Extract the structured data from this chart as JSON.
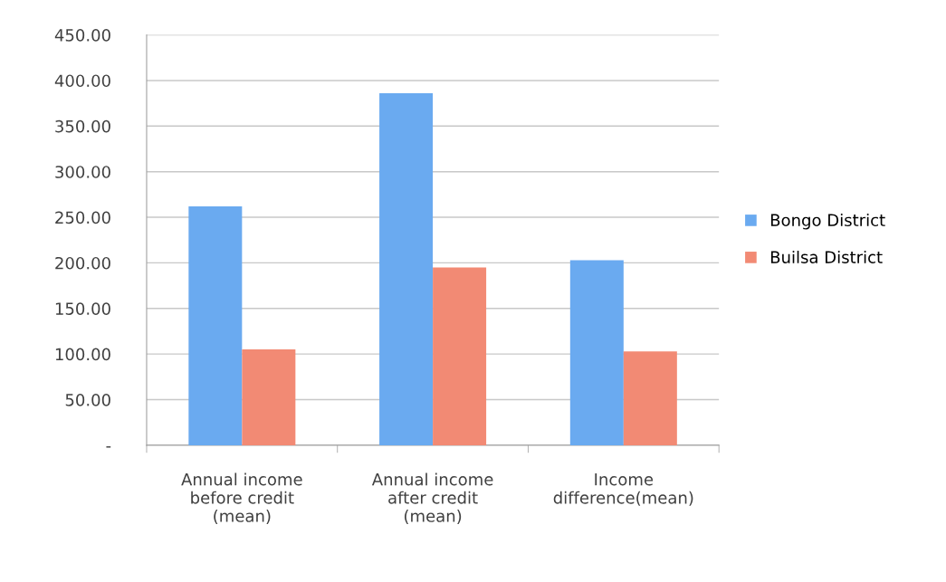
{
  "chart_data": {
    "type": "bar",
    "categories": [
      "Annual income\nbefore credit\n(mean)",
      "Annual income\nafter credit\n(mean)",
      "Income\ndifference(mean)"
    ],
    "series": [
      {
        "name": "Bongo District",
        "color": "#6aaaf0",
        "values": [
          262,
          386,
          203
        ]
      },
      {
        "name": "Builsa District",
        "color": "#f28a74",
        "values": [
          105,
          195,
          103
        ]
      }
    ],
    "ylim": [
      0,
      450
    ],
    "yticks": [
      {
        "value": 0,
        "label": "-"
      },
      {
        "value": 50,
        "label": "50.00"
      },
      {
        "value": 100,
        "label": "100.00"
      },
      {
        "value": 150,
        "label": "150.00"
      },
      {
        "value": 200,
        "label": "200.00"
      },
      {
        "value": 250,
        "label": "250.00"
      },
      {
        "value": 300,
        "label": "300.00"
      },
      {
        "value": 350,
        "label": "350.00"
      },
      {
        "value": 400,
        "label": "400.00"
      },
      {
        "value": 450,
        "label": "450.00"
      }
    ],
    "grid": "y",
    "legend": "right"
  }
}
